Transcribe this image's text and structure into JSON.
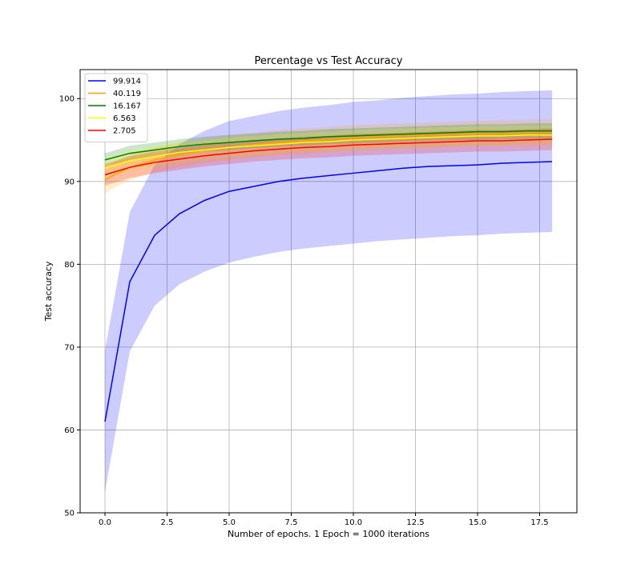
{
  "chart_data": {
    "type": "line",
    "title": "Percentage vs Test Accuracy",
    "xlabel": "Number of epochs. 1 Epoch = 1000 iterations",
    "ylabel": "Test accuracy",
    "xlim": [
      -1,
      19
    ],
    "ylim": [
      50,
      103.5
    ],
    "xticks": [
      0,
      2.5,
      5,
      7.5,
      10,
      12.5,
      15,
      17.5
    ],
    "xtick_labels": [
      "0.0",
      "2.5",
      "5.0",
      "7.5",
      "10.0",
      "12.5",
      "15.0",
      "17.5"
    ],
    "yticks": [
      50,
      60,
      70,
      80,
      90,
      100
    ],
    "ytick_labels": [
      "50",
      "60",
      "70",
      "80",
      "90",
      "100"
    ],
    "grid": true,
    "legend_position": "top-left",
    "x": [
      0,
      1,
      2,
      3,
      4,
      5,
      6,
      7,
      8,
      9,
      10,
      11,
      12,
      13,
      14,
      15,
      16,
      17,
      18
    ],
    "series": [
      {
        "name": "99.914",
        "color": "#0000ff",
        "band_color": "#0000ff",
        "values": [
          61.0,
          77.9,
          83.5,
          86.1,
          87.7,
          88.8,
          89.4,
          90.0,
          90.4,
          90.7,
          91.0,
          91.3,
          91.6,
          91.8,
          91.9,
          92.0,
          92.2,
          92.3,
          92.4
        ],
        "lower": [
          52.5,
          69.5,
          75.0,
          77.6,
          79.1,
          80.2,
          80.9,
          81.5,
          81.9,
          82.2,
          82.5,
          82.8,
          83.0,
          83.2,
          83.4,
          83.5,
          83.7,
          83.8,
          83.9
        ],
        "upper": [
          69.6,
          86.3,
          92.0,
          94.5,
          96.1,
          97.3,
          97.9,
          98.5,
          98.9,
          99.2,
          99.6,
          99.8,
          100.1,
          100.3,
          100.5,
          100.6,
          100.8,
          100.9,
          101.0
        ]
      },
      {
        "name": "40.119",
        "color": "#ffa500",
        "band_color": "#ffa500",
        "values": [
          90.2,
          91.7,
          92.6,
          93.2,
          93.7,
          94.1,
          94.4,
          94.7,
          94.9,
          95.1,
          95.3,
          95.4,
          95.5,
          95.6,
          95.7,
          95.8,
          95.8,
          95.9,
          95.9
        ],
        "lower": [
          88.6,
          90.2,
          91.1,
          91.7,
          92.2,
          92.6,
          92.9,
          93.2,
          93.4,
          93.6,
          93.8,
          93.9,
          94.0,
          94.1,
          94.2,
          94.3,
          94.3,
          94.4,
          94.4
        ],
        "upper": [
          91.8,
          93.2,
          94.1,
          94.7,
          95.2,
          95.6,
          95.9,
          96.2,
          96.4,
          96.6,
          96.8,
          96.9,
          97.0,
          97.1,
          97.2,
          97.3,
          97.4,
          97.4,
          97.5
        ]
      },
      {
        "name": "16.167",
        "color": "#008000",
        "band_color": "#008000",
        "values": [
          92.6,
          93.4,
          93.8,
          94.2,
          94.5,
          94.7,
          94.9,
          95.1,
          95.2,
          95.4,
          95.5,
          95.6,
          95.7,
          95.8,
          95.9,
          96.0,
          96.0,
          96.1,
          96.1
        ],
        "lower": [
          91.8,
          92.5,
          92.9,
          93.3,
          93.6,
          93.8,
          94.0,
          94.2,
          94.3,
          94.5,
          94.6,
          94.7,
          94.8,
          94.9,
          95.0,
          95.0,
          95.1,
          95.1,
          95.2
        ],
        "upper": [
          93.4,
          94.3,
          94.7,
          95.1,
          95.4,
          95.6,
          95.8,
          96.0,
          96.1,
          96.3,
          96.4,
          96.5,
          96.6,
          96.7,
          96.8,
          96.9,
          96.9,
          97.0,
          97.0
        ]
      },
      {
        "name": "6.563",
        "color": "#ffff00",
        "band_color": "#ffff00",
        "values": [
          91.6,
          92.5,
          93.0,
          93.5,
          93.8,
          94.1,
          94.3,
          94.5,
          94.7,
          94.8,
          95.0,
          95.1,
          95.2,
          95.3,
          95.4,
          95.5,
          95.5,
          95.6,
          95.6
        ],
        "lower": [
          90.4,
          91.3,
          91.8,
          92.3,
          92.6,
          92.9,
          93.1,
          93.3,
          93.5,
          93.6,
          93.8,
          93.9,
          94.0,
          94.1,
          94.2,
          94.3,
          94.3,
          94.4,
          94.4
        ],
        "upper": [
          92.8,
          93.7,
          94.2,
          94.7,
          95.0,
          95.3,
          95.5,
          95.7,
          95.9,
          96.0,
          96.2,
          96.3,
          96.4,
          96.5,
          96.6,
          96.7,
          96.7,
          96.8,
          96.8
        ]
      },
      {
        "name": "2.705",
        "color": "#ff0000",
        "band_color": "#ff0000",
        "values": [
          90.8,
          91.7,
          92.3,
          92.7,
          93.1,
          93.4,
          93.7,
          93.9,
          94.1,
          94.2,
          94.4,
          94.5,
          94.6,
          94.7,
          94.8,
          94.9,
          94.9,
          95.0,
          95.1
        ],
        "lower": [
          89.5,
          90.4,
          91.0,
          91.4,
          91.8,
          92.1,
          92.4,
          92.6,
          92.8,
          92.9,
          93.1,
          93.2,
          93.3,
          93.4,
          93.5,
          93.6,
          93.6,
          93.7,
          93.8
        ],
        "upper": [
          92.1,
          93.0,
          93.6,
          94.0,
          94.4,
          94.7,
          95.0,
          95.2,
          95.4,
          95.5,
          95.7,
          95.8,
          95.9,
          96.0,
          96.1,
          96.2,
          96.2,
          96.3,
          96.4
        ]
      }
    ]
  }
}
